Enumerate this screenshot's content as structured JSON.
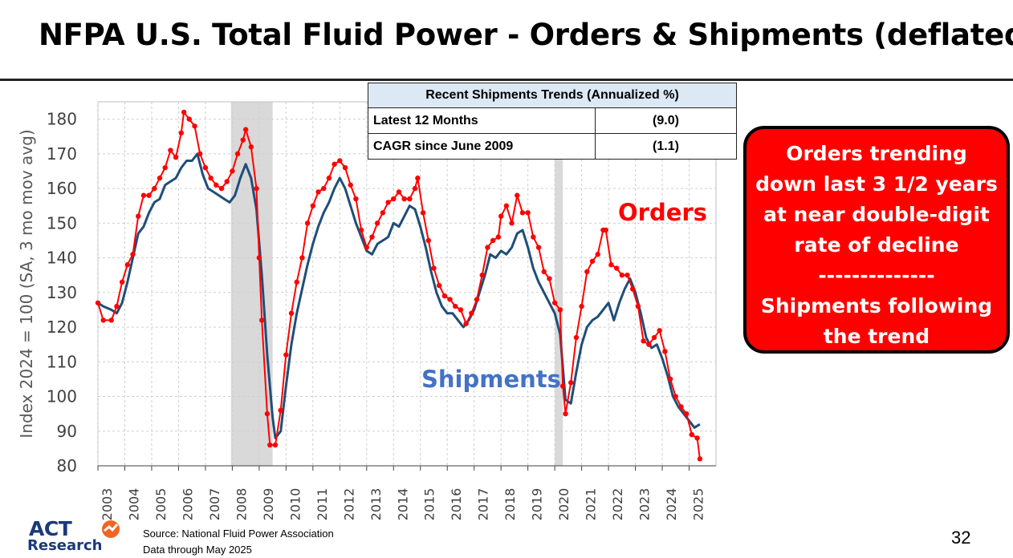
{
  "slide": {
    "title": "NFPA U.S. Total Fluid Power - Orders & Shipments (deflated)",
    "page_number": "32",
    "source_line1": "Source: National Fluid Power Association",
    "source_line2": "Data through May 2025",
    "logo_top": "ACT",
    "logo_bottom": "Research"
  },
  "trend_table": {
    "header": "Recent Shipments Trends (Annualized %)",
    "rows": [
      {
        "label": "Latest 12 Months",
        "value": "(9.0)"
      },
      {
        "label": "CAGR since June 2009",
        "value": "(1.1)"
      }
    ]
  },
  "callout": {
    "lines": [
      "Orders trending",
      "down last 3 1/2 years",
      "at near double-digit",
      "rate of decline",
      "--------------",
      "Shipments following",
      "the trend"
    ]
  },
  "colors": {
    "orders": "#ff0000",
    "shipments": "#1f4e79",
    "recession": "#d9d9d9",
    "callout_bg": "#ff0000",
    "shipments_label": "#4472c4"
  },
  "chart_data": {
    "type": "line",
    "ylabel": "Index 2024 = 100 (SA, 3 mo mov avg)",
    "xlabel": "",
    "ylim": [
      80,
      185
    ],
    "yticks": [
      80,
      90,
      100,
      110,
      120,
      130,
      140,
      150,
      160,
      170,
      180
    ],
    "xlim": [
      2003.0,
      2026.0
    ],
    "xticks": [
      "2003",
      "2004",
      "2005",
      "2006",
      "2007",
      "2008",
      "2009",
      "2010",
      "2011",
      "2012",
      "2013",
      "2014",
      "2015",
      "2016",
      "2017",
      "2018",
      "2019",
      "2020",
      "2021",
      "2022",
      "2023",
      "2024",
      "2025"
    ],
    "grid": true,
    "recession_shading": [
      [
        2007.95,
        2009.5
      ],
      [
        2020.0,
        2020.3
      ]
    ],
    "series_labels": {
      "orders": "Orders",
      "shipments": "Shipments"
    },
    "series": [
      {
        "name": "Orders",
        "markers": true,
        "points": [
          [
            2003.0,
            127
          ],
          [
            2003.2,
            122
          ],
          [
            2003.5,
            122
          ],
          [
            2003.7,
            126
          ],
          [
            2003.9,
            133
          ],
          [
            2004.1,
            138
          ],
          [
            2004.3,
            141
          ],
          [
            2004.5,
            152
          ],
          [
            2004.7,
            158
          ],
          [
            2004.9,
            158
          ],
          [
            2005.1,
            160
          ],
          [
            2005.3,
            163
          ],
          [
            2005.5,
            166
          ],
          [
            2005.7,
            171
          ],
          [
            2005.9,
            169
          ],
          [
            2006.1,
            176
          ],
          [
            2006.2,
            182
          ],
          [
            2006.4,
            180
          ],
          [
            2006.6,
            178
          ],
          [
            2006.8,
            170
          ],
          [
            2007.0,
            166
          ],
          [
            2007.2,
            163
          ],
          [
            2007.4,
            161
          ],
          [
            2007.6,
            160
          ],
          [
            2007.8,
            162
          ],
          [
            2008.0,
            165
          ],
          [
            2008.2,
            170
          ],
          [
            2008.4,
            174
          ],
          [
            2008.5,
            177
          ],
          [
            2008.7,
            172
          ],
          [
            2008.9,
            160
          ],
          [
            2009.0,
            140
          ],
          [
            2009.1,
            122
          ],
          [
            2009.3,
            95
          ],
          [
            2009.4,
            86
          ],
          [
            2009.6,
            86
          ],
          [
            2009.8,
            96
          ],
          [
            2010.0,
            112
          ],
          [
            2010.2,
            124
          ],
          [
            2010.4,
            133
          ],
          [
            2010.6,
            140
          ],
          [
            2010.8,
            150
          ],
          [
            2011.0,
            155
          ],
          [
            2011.2,
            159
          ],
          [
            2011.4,
            160
          ],
          [
            2011.6,
            163
          ],
          [
            2011.8,
            167
          ],
          [
            2012.0,
            168
          ],
          [
            2012.2,
            166
          ],
          [
            2012.4,
            161
          ],
          [
            2012.6,
            157
          ],
          [
            2012.8,
            148
          ],
          [
            2013.0,
            143
          ],
          [
            2013.2,
            146
          ],
          [
            2013.4,
            150
          ],
          [
            2013.6,
            153
          ],
          [
            2013.8,
            156
          ],
          [
            2014.0,
            157
          ],
          [
            2014.2,
            159
          ],
          [
            2014.4,
            157
          ],
          [
            2014.6,
            157
          ],
          [
            2014.8,
            160
          ],
          [
            2014.9,
            163
          ],
          [
            2015.1,
            153
          ],
          [
            2015.3,
            145
          ],
          [
            2015.5,
            137
          ],
          [
            2015.7,
            132
          ],
          [
            2015.9,
            129
          ],
          [
            2016.1,
            128
          ],
          [
            2016.3,
            126
          ],
          [
            2016.5,
            125
          ],
          [
            2016.7,
            121
          ],
          [
            2016.9,
            124
          ],
          [
            2017.1,
            128
          ],
          [
            2017.3,
            135
          ],
          [
            2017.5,
            143
          ],
          [
            2017.7,
            145
          ],
          [
            2017.9,
            146
          ],
          [
            2018.0,
            152
          ],
          [
            2018.2,
            155
          ],
          [
            2018.4,
            150
          ],
          [
            2018.6,
            158
          ],
          [
            2018.8,
            153
          ],
          [
            2019.0,
            153
          ],
          [
            2019.2,
            146
          ],
          [
            2019.4,
            143
          ],
          [
            2019.6,
            136
          ],
          [
            2019.8,
            134
          ],
          [
            2020.0,
            127
          ],
          [
            2020.2,
            125
          ],
          [
            2020.3,
            103
          ],
          [
            2020.4,
            95
          ],
          [
            2020.6,
            104
          ],
          [
            2020.8,
            117
          ],
          [
            2021.0,
            126
          ],
          [
            2021.2,
            136
          ],
          [
            2021.4,
            139
          ],
          [
            2021.6,
            141
          ],
          [
            2021.8,
            148
          ],
          [
            2021.9,
            148
          ],
          [
            2022.1,
            138
          ],
          [
            2022.3,
            137
          ],
          [
            2022.5,
            135
          ],
          [
            2022.7,
            135
          ],
          [
            2022.9,
            131
          ],
          [
            2023.1,
            126
          ],
          [
            2023.3,
            116
          ],
          [
            2023.5,
            115
          ],
          [
            2023.7,
            117
          ],
          [
            2023.9,
            119
          ],
          [
            2024.1,
            113
          ],
          [
            2024.3,
            105
          ],
          [
            2024.5,
            100
          ],
          [
            2024.7,
            97
          ],
          [
            2024.9,
            95
          ],
          [
            2025.1,
            89
          ],
          [
            2025.3,
            88
          ],
          [
            2025.4,
            82
          ]
        ]
      },
      {
        "name": "Shipments",
        "markers": false,
        "points": [
          [
            2003.0,
            127
          ],
          [
            2003.2,
            126
          ],
          [
            2003.5,
            125
          ],
          [
            2003.7,
            124
          ],
          [
            2003.9,
            127
          ],
          [
            2004.1,
            133
          ],
          [
            2004.3,
            140
          ],
          [
            2004.5,
            147
          ],
          [
            2004.7,
            149
          ],
          [
            2004.9,
            153
          ],
          [
            2005.1,
            156
          ],
          [
            2005.3,
            157
          ],
          [
            2005.5,
            161
          ],
          [
            2005.7,
            162
          ],
          [
            2005.9,
            163
          ],
          [
            2006.1,
            166
          ],
          [
            2006.3,
            168
          ],
          [
            2006.5,
            168
          ],
          [
            2006.7,
            170
          ],
          [
            2006.9,
            164
          ],
          [
            2007.1,
            160
          ],
          [
            2007.3,
            159
          ],
          [
            2007.5,
            158
          ],
          [
            2007.7,
            157
          ],
          [
            2007.9,
            156
          ],
          [
            2008.1,
            158
          ],
          [
            2008.3,
            163
          ],
          [
            2008.5,
            167
          ],
          [
            2008.7,
            163
          ],
          [
            2008.9,
            154
          ],
          [
            2009.1,
            135
          ],
          [
            2009.3,
            112
          ],
          [
            2009.5,
            94
          ],
          [
            2009.6,
            88
          ],
          [
            2009.8,
            90
          ],
          [
            2010.0,
            103
          ],
          [
            2010.2,
            115
          ],
          [
            2010.4,
            124
          ],
          [
            2010.6,
            131
          ],
          [
            2010.8,
            138
          ],
          [
            2011.0,
            144
          ],
          [
            2011.2,
            149
          ],
          [
            2011.4,
            153
          ],
          [
            2011.6,
            156
          ],
          [
            2011.8,
            160
          ],
          [
            2012.0,
            163
          ],
          [
            2012.2,
            160
          ],
          [
            2012.4,
            155
          ],
          [
            2012.6,
            150
          ],
          [
            2012.8,
            146
          ],
          [
            2013.0,
            142
          ],
          [
            2013.2,
            141
          ],
          [
            2013.4,
            144
          ],
          [
            2013.6,
            145
          ],
          [
            2013.8,
            146
          ],
          [
            2014.0,
            150
          ],
          [
            2014.2,
            149
          ],
          [
            2014.4,
            152
          ],
          [
            2014.6,
            155
          ],
          [
            2014.8,
            154
          ],
          [
            2015.0,
            149
          ],
          [
            2015.2,
            143
          ],
          [
            2015.4,
            136
          ],
          [
            2015.6,
            130
          ],
          [
            2015.8,
            126
          ],
          [
            2016.0,
            124
          ],
          [
            2016.2,
            124
          ],
          [
            2016.4,
            122
          ],
          [
            2016.6,
            120
          ],
          [
            2016.8,
            122
          ],
          [
            2017.0,
            125
          ],
          [
            2017.2,
            130
          ],
          [
            2017.4,
            135
          ],
          [
            2017.6,
            141
          ],
          [
            2017.8,
            140
          ],
          [
            2018.0,
            142
          ],
          [
            2018.2,
            141
          ],
          [
            2018.4,
            143
          ],
          [
            2018.6,
            147
          ],
          [
            2018.8,
            148
          ],
          [
            2019.0,
            143
          ],
          [
            2019.2,
            137
          ],
          [
            2019.4,
            133
          ],
          [
            2019.6,
            130
          ],
          [
            2019.8,
            127
          ],
          [
            2020.0,
            124
          ],
          [
            2020.2,
            118
          ],
          [
            2020.4,
            99
          ],
          [
            2020.6,
            98
          ],
          [
            2020.8,
            107
          ],
          [
            2021.0,
            115
          ],
          [
            2021.2,
            120
          ],
          [
            2021.4,
            122
          ],
          [
            2021.6,
            123
          ],
          [
            2021.8,
            125
          ],
          [
            2022.0,
            127
          ],
          [
            2022.2,
            122
          ],
          [
            2022.4,
            127
          ],
          [
            2022.6,
            131
          ],
          [
            2022.8,
            134
          ],
          [
            2023.0,
            130
          ],
          [
            2023.2,
            124
          ],
          [
            2023.4,
            117
          ],
          [
            2023.6,
            114
          ],
          [
            2023.8,
            115
          ],
          [
            2024.0,
            111
          ],
          [
            2024.2,
            106
          ],
          [
            2024.4,
            100
          ],
          [
            2024.6,
            97
          ],
          [
            2024.8,
            95
          ],
          [
            2025.0,
            93
          ],
          [
            2025.2,
            91
          ],
          [
            2025.4,
            92
          ]
        ]
      }
    ]
  }
}
